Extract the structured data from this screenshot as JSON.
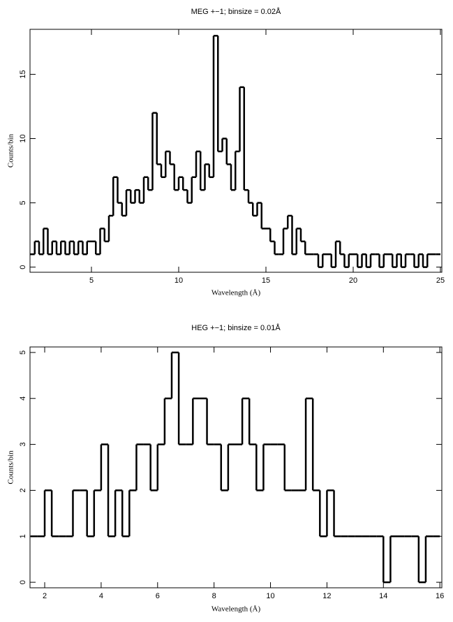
{
  "chart_data": [
    {
      "type": "histogram",
      "title": "MEG +−1; binsize = 0.02Å",
      "x_label": "Wavelength (Å)",
      "y_label": "Counts/bin",
      "color": "#000000",
      "bins": [
        1.5,
        1.75,
        2,
        2.25,
        2.5,
        2.75,
        3,
        3.25,
        3.5,
        3.75,
        4,
        4.25,
        4.5,
        4.75,
        5,
        5.25,
        5.5,
        5.75,
        6,
        6.25,
        6.5,
        6.75,
        7,
        7.25,
        7.5,
        7.75,
        8,
        8.25,
        8.5,
        8.75,
        9,
        9.25,
        9.5,
        9.75,
        10,
        10.25,
        10.5,
        10.75,
        11,
        11.25,
        11.5,
        11.75,
        12,
        12.25,
        12.5,
        12.75,
        13,
        13.25,
        13.5,
        13.75,
        14,
        14.25,
        14.5,
        14.75,
        15,
        15.25,
        15.5,
        15.75,
        16,
        16.25,
        16.5,
        16.75,
        17,
        17.25,
        17.5,
        17.75,
        18,
        18.25,
        18.5,
        18.75,
        19,
        19.25,
        19.5,
        19.75,
        20,
        20.25,
        20.5,
        20.75,
        21,
        21.25,
        21.5,
        21.75,
        22,
        22.25,
        22.5,
        22.75,
        23,
        23.25,
        23.5,
        23.75,
        24,
        24.25,
        24.5,
        24.75,
        25
      ],
      "values": [
        1,
        2,
        1,
        3,
        1,
        2,
        1,
        2,
        1,
        2,
        1,
        2,
        1,
        2,
        2,
        1,
        3,
        2,
        4,
        7,
        5,
        4,
        6,
        5,
        6,
        5,
        7,
        6,
        12,
        8,
        7,
        9,
        8,
        6,
        7,
        6,
        5,
        7,
        9,
        6,
        8,
        7,
        18,
        9,
        10,
        8,
        6,
        9,
        14,
        6,
        5,
        4,
        5,
        3,
        3,
        2,
        1,
        1,
        3,
        4,
        1,
        3,
        2,
        1,
        1,
        1,
        0,
        1,
        1,
        0,
        2,
        1,
        0,
        1,
        1,
        0,
        1,
        0,
        1,
        1,
        0,
        1,
        1,
        0,
        1,
        0,
        1,
        1,
        0,
        1,
        0,
        1,
        1,
        1
      ],
      "xlim": [
        1.48,
        25.08
      ],
      "ylim": [
        -0.4,
        18.5
      ],
      "xticks": [
        5,
        10,
        15,
        20,
        25
      ],
      "yticks": [
        0,
        5,
        10,
        15
      ]
    },
    {
      "type": "histogram",
      "title": "HEG +−1; binsize = 0.01Å",
      "x_label": "Wavelength (Å)",
      "y_label": "Counts/bin",
      "color": "#000000",
      "bins": [
        1.5,
        1.75,
        2,
        2.25,
        2.5,
        2.75,
        3,
        3.25,
        3.5,
        3.75,
        4,
        4.25,
        4.5,
        4.75,
        5,
        5.25,
        5.5,
        5.75,
        6,
        6.25,
        6.5,
        6.75,
        7,
        7.25,
        7.5,
        7.75,
        8,
        8.25,
        8.5,
        8.75,
        9,
        9.25,
        9.5,
        9.75,
        10,
        10.25,
        10.5,
        10.75,
        11,
        11.25,
        11.5,
        11.75,
        12,
        12.25,
        12.5,
        12.75,
        13,
        13.25,
        13.5,
        13.75,
        14,
        14.25,
        14.5,
        14.75,
        15,
        15.25,
        15.5,
        15.75,
        16
      ],
      "values": [
        1,
        1,
        2,
        1,
        1,
        1,
        2,
        2,
        1,
        2,
        3,
        1,
        2,
        1,
        2,
        3,
        3,
        2,
        3,
        4,
        5,
        3,
        3,
        4,
        4,
        3,
        3,
        2,
        3,
        3,
        4,
        3,
        2,
        3,
        3,
        3,
        2,
        2,
        2,
        4,
        2,
        1,
        2,
        1,
        1,
        1,
        1,
        1,
        1,
        1,
        0,
        1,
        1,
        1,
        1,
        0,
        1,
        1
      ],
      "xlim": [
        1.48,
        16.07
      ],
      "ylim": [
        -0.12,
        5.12
      ],
      "xticks": [
        2,
        4,
        6,
        8,
        10,
        12,
        14,
        16
      ],
      "yticks": [
        0,
        1,
        2,
        3,
        4,
        5
      ]
    }
  ]
}
